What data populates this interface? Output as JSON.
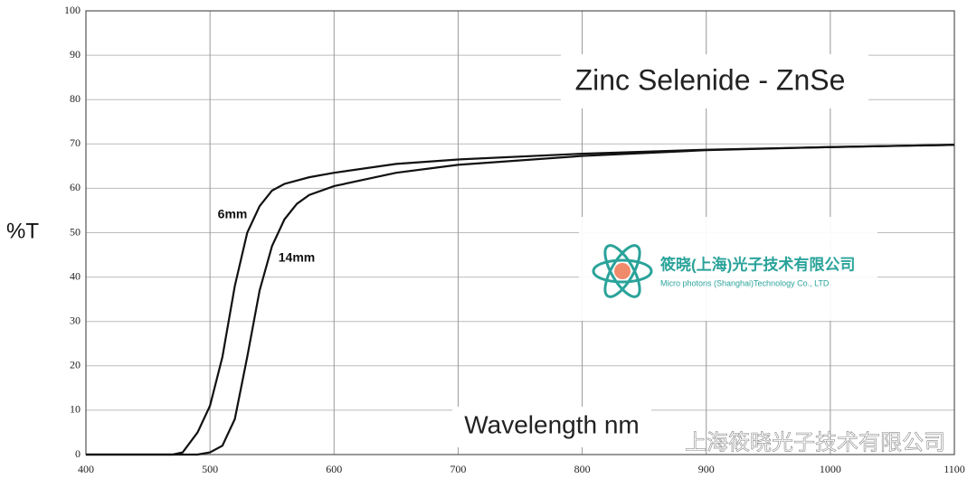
{
  "chart_data": {
    "type": "line",
    "title": "Zinc Selenide - ZnSe",
    "x_label": "Wavelength nm",
    "y_label": "%T",
    "xlim": [
      400,
      1100
    ],
    "xticks": [
      400,
      500,
      600,
      700,
      800,
      900,
      1000,
      1100
    ],
    "ylim": [
      0,
      100
    ],
    "yticks": [
      0,
      10,
      20,
      30,
      40,
      50,
      60,
      70,
      80,
      90,
      100
    ],
    "grid": true,
    "series": [
      {
        "name": "6mm",
        "color": "#111111",
        "x": [
          400,
          470,
          478,
          490,
          500,
          510,
          520,
          530,
          540,
          550,
          560,
          580,
          600,
          650,
          700,
          800,
          900,
          1000,
          1100
        ],
        "values": [
          0,
          0,
          0.5,
          5,
          11,
          22,
          38,
          50,
          56,
          59.5,
          61,
          62.5,
          63.5,
          65.5,
          66.5,
          67.8,
          68.7,
          69.3,
          69.8
        ]
      },
      {
        "name": "14mm",
        "color": "#111111",
        "x": [
          400,
          490,
          500,
          510,
          520,
          530,
          540,
          550,
          560,
          570,
          580,
          600,
          650,
          700,
          800,
          900,
          1000,
          1100
        ],
        "values": [
          0,
          0,
          0.5,
          2,
          8,
          22,
          37,
          47,
          53,
          56.5,
          58.5,
          60.5,
          63.5,
          65.3,
          67.3,
          68.6,
          69.3,
          69.8
        ]
      }
    ]
  },
  "logo": {
    "name": "筱晓(上海)光子技术有限公司",
    "subtitle": "Micro photons (Shanghai)Technology Co., LTD"
  },
  "watermark": "上海筱晓光子技术有限公司"
}
